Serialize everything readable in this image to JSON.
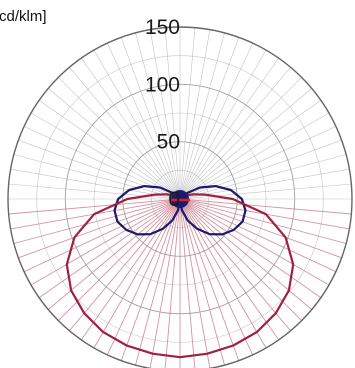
{
  "chart_data": {
    "type": "polar",
    "unit_label": "cd/klm]",
    "radial_ticks": [
      0,
      50,
      100,
      150
    ],
    "rmax": 150,
    "angle_step_deg": 5,
    "grid": true,
    "colors": {
      "c0_c180": "#1a1a6e",
      "c90_c270": "#a02040",
      "accent": "#e02020",
      "grid_upper": "#aaaaaa",
      "grid_lower": "#c87080"
    },
    "series": [
      {
        "key": "c0_c180",
        "angles_deg": [
          0,
          10,
          20,
          30,
          40,
          50,
          60,
          70,
          80,
          90,
          100,
          110,
          120,
          130,
          140,
          150,
          160,
          170,
          180
        ],
        "values": [
          0,
          10,
          20,
          30,
          40,
          48,
          54,
          58,
          58,
          54,
          45,
          33,
          20,
          8,
          3,
          2,
          1,
          0,
          0
        ]
      },
      {
        "key": "c90_c270",
        "angles_deg": [
          0,
          10,
          20,
          30,
          40,
          50,
          60,
          70,
          80,
          90,
          100,
          110,
          120,
          130,
          140,
          150,
          160,
          170,
          180
        ],
        "values": [
          138,
          137,
          136,
          134,
          130,
          124,
          114,
          98,
          76,
          46,
          22,
          12,
          6,
          3,
          1,
          0,
          0,
          0,
          0
        ]
      }
    ]
  }
}
